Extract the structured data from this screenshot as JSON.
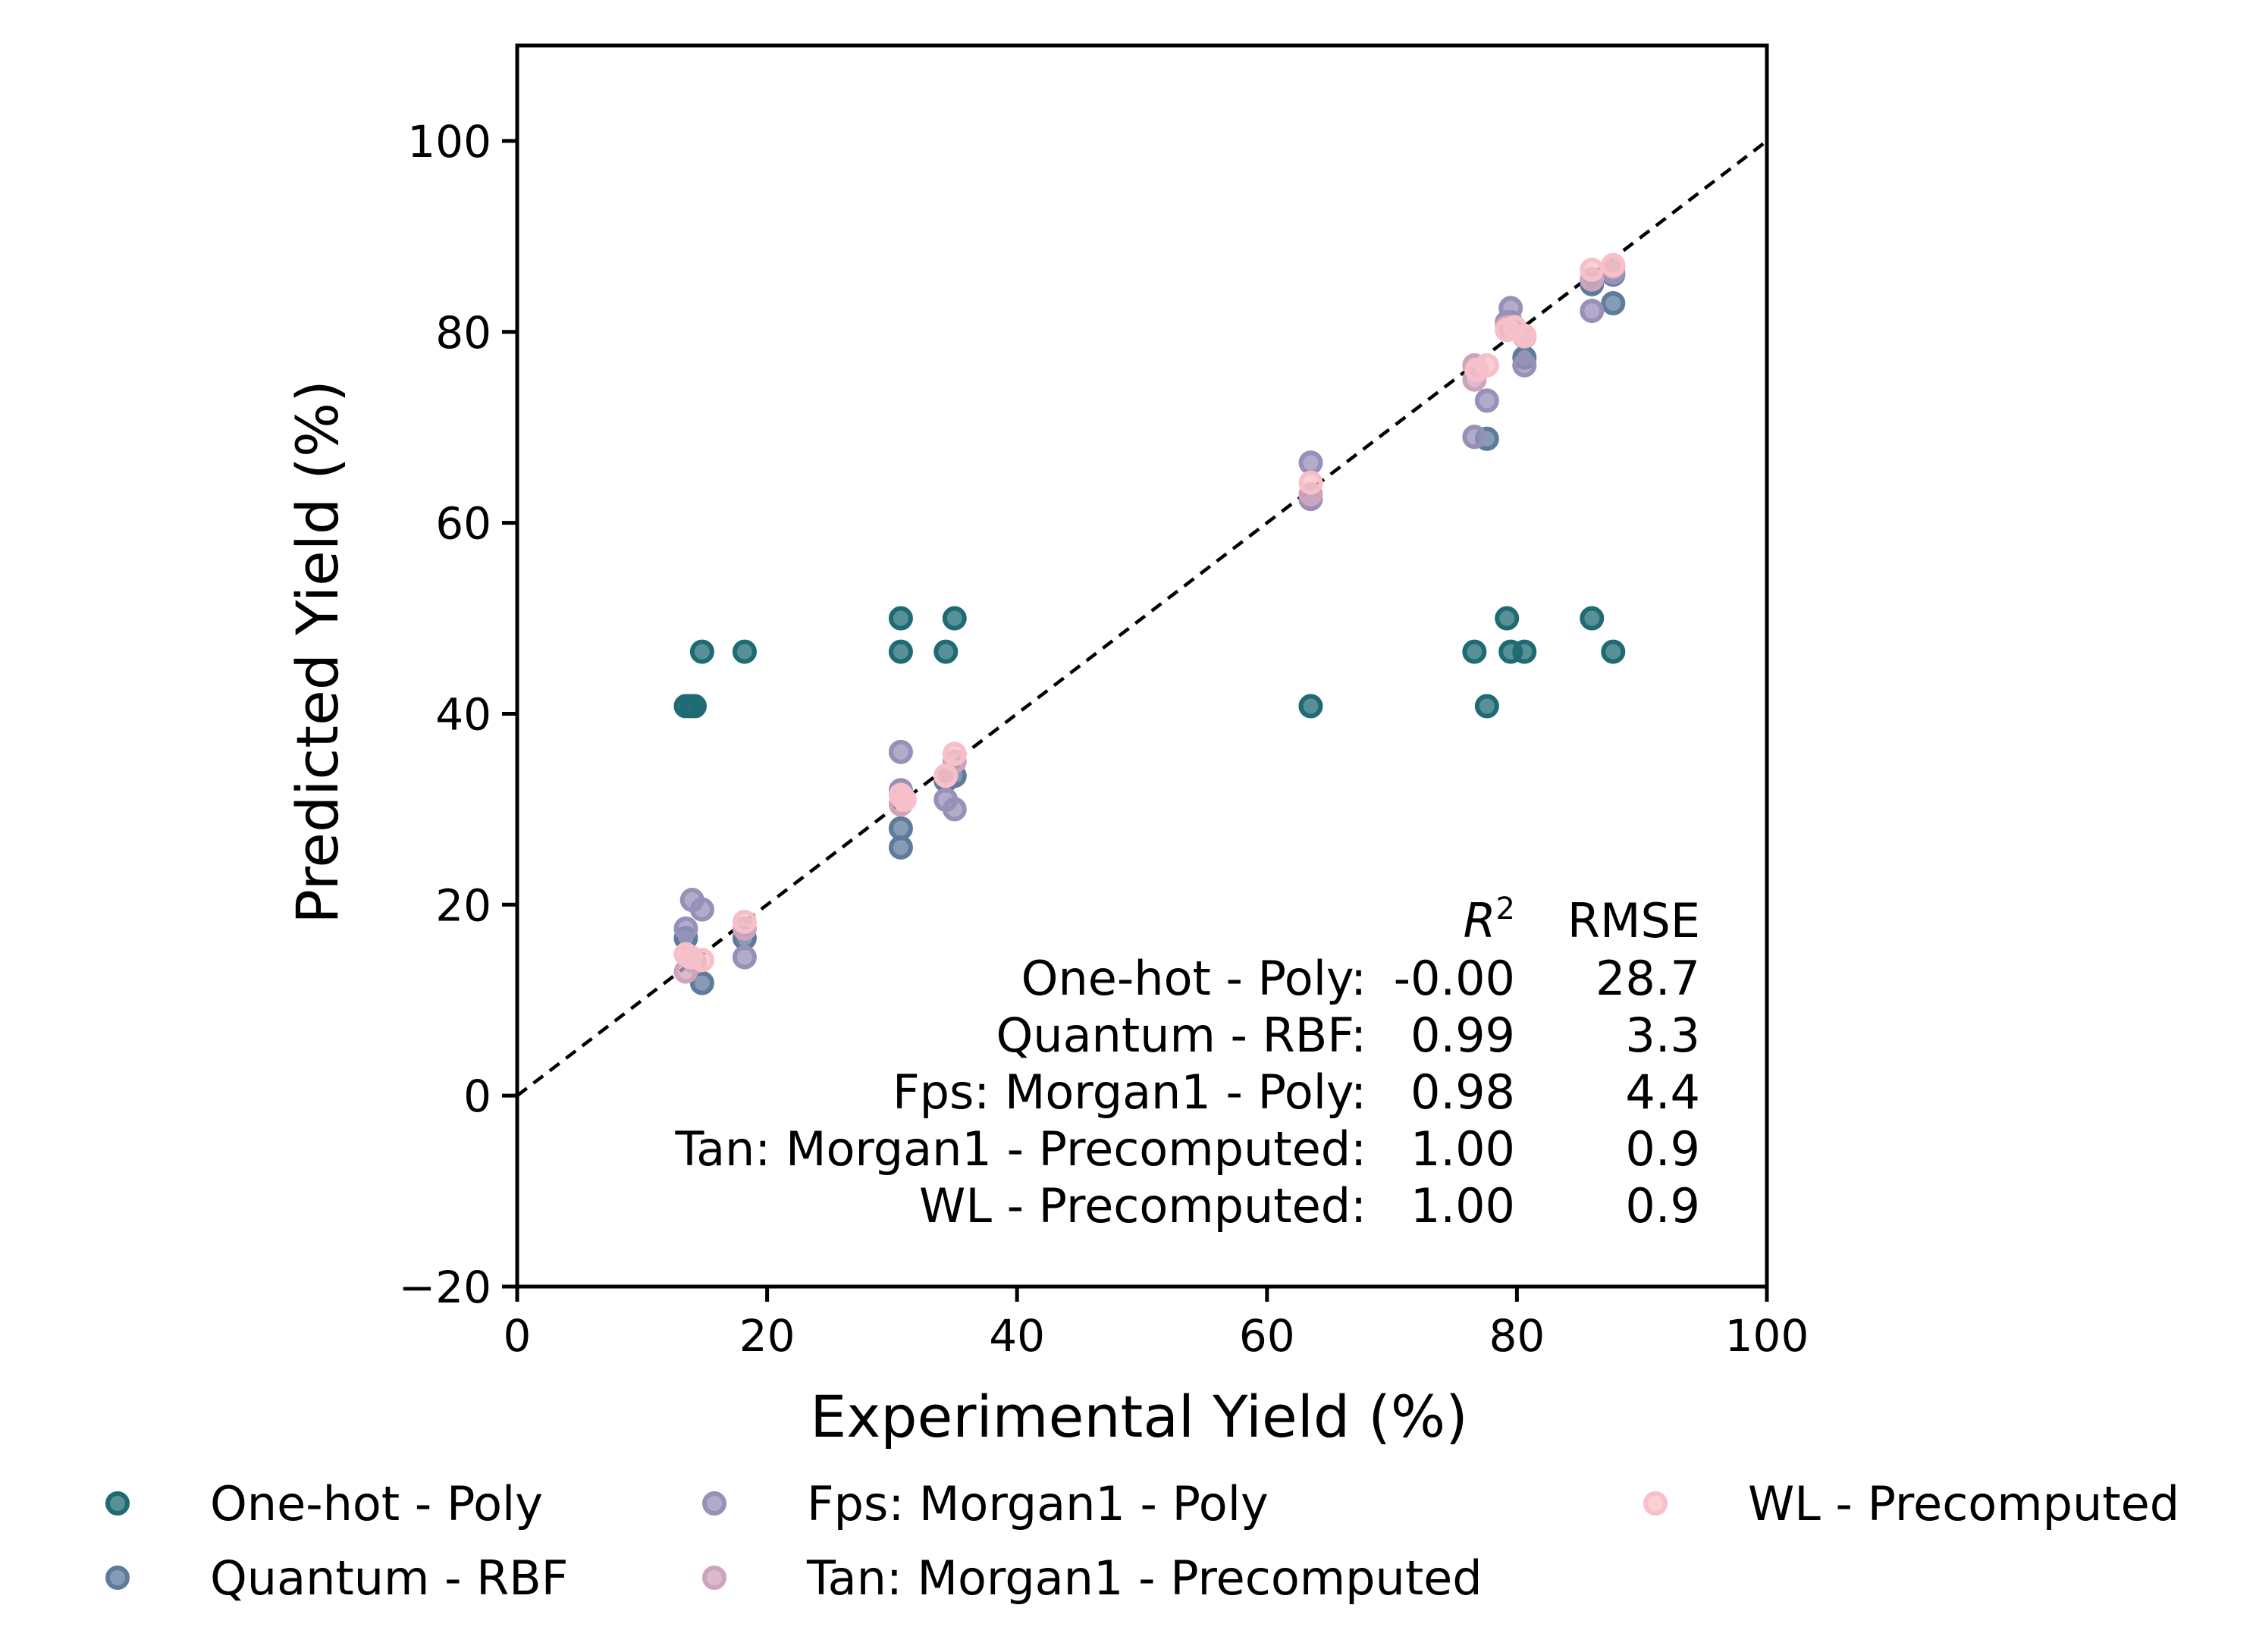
{
  "chart_data": {
    "type": "scatter",
    "title": "",
    "xlabel": "Experimental Yield (%)",
    "ylabel": "Predicted Yield (%)",
    "xlim": [
      0,
      100
    ],
    "ylim": [
      -20,
      110
    ],
    "x_ticks": [
      0,
      20,
      40,
      60,
      80,
      100
    ],
    "y_ticks": [
      -20,
      0,
      20,
      40,
      60,
      80,
      100
    ],
    "x_tick_labels": [
      "0",
      "20",
      "40",
      "60",
      "80",
      "100"
    ],
    "y_tick_labels": [
      "−20",
      "0",
      "20",
      "40",
      "60",
      "80",
      "100"
    ],
    "diagonal": {
      "from": [
        0,
        0
      ],
      "to": [
        100,
        100
      ],
      "style": "dashed"
    },
    "series": [
      {
        "name": "One-hot - Poly",
        "color": "#1f6b73",
        "points": [
          [
            13.5,
            40.8
          ],
          [
            13.9,
            40.8
          ],
          [
            14.2,
            40.8
          ],
          [
            14.8,
            46.5
          ],
          [
            18.2,
            46.5
          ],
          [
            30.7,
            50
          ],
          [
            30.7,
            46.5
          ],
          [
            34.3,
            46.5
          ],
          [
            35,
            50
          ],
          [
            63.5,
            40.8
          ],
          [
            76.6,
            46.5
          ],
          [
            77.6,
            40.8
          ],
          [
            79.2,
            50
          ],
          [
            79.5,
            46.5
          ],
          [
            80.6,
            46.5
          ],
          [
            86,
            50
          ],
          [
            87.7,
            46.5
          ]
        ]
      },
      {
        "name": "Quantum - RBF",
        "color": "#5e7b9c",
        "points": [
          [
            13.5,
            16.5
          ],
          [
            14.8,
            11.8
          ],
          [
            18.2,
            16.5
          ],
          [
            30.7,
            28
          ],
          [
            30.7,
            26
          ],
          [
            34.3,
            33
          ],
          [
            35,
            33.5
          ],
          [
            79.5,
            81
          ],
          [
            80.6,
            77.3
          ],
          [
            77.6,
            68.8
          ],
          [
            86,
            85
          ],
          [
            87.7,
            83
          ],
          [
            87.7,
            86
          ]
        ]
      },
      {
        "name": "Fps: Morgan1 - Poly",
        "color": "#9890b8",
        "points": [
          [
            13.5,
            17.5
          ],
          [
            14.0,
            20.5
          ],
          [
            14.8,
            19.5
          ],
          [
            18.2,
            14.5
          ],
          [
            30.7,
            36
          ],
          [
            30.7,
            32
          ],
          [
            34.3,
            31
          ],
          [
            35,
            30
          ],
          [
            63.5,
            66.3
          ],
          [
            63.5,
            62.5
          ],
          [
            76.6,
            69
          ],
          [
            77.6,
            72.8
          ],
          [
            79.2,
            81
          ],
          [
            79.5,
            82.5
          ],
          [
            80.6,
            76.5
          ],
          [
            86,
            82.2
          ],
          [
            87.7,
            86.2
          ]
        ]
      },
      {
        "name": "Tan: Morgan1 - Precomputed",
        "color": "#cda4bc",
        "points": [
          [
            13.5,
            13
          ],
          [
            14.2,
            14
          ],
          [
            18.2,
            17.5
          ],
          [
            30.7,
            30.5
          ],
          [
            34.3,
            33.5
          ],
          [
            35,
            35
          ],
          [
            63.5,
            63
          ],
          [
            76.6,
            76.5
          ],
          [
            76.6,
            75
          ],
          [
            79.2,
            80.5
          ],
          [
            80.6,
            79.5
          ],
          [
            86,
            85.5
          ],
          [
            87.7,
            86.8
          ]
        ]
      },
      {
        "name": "WL - Precomputed",
        "color": "#f7c0c8",
        "points": [
          [
            13.5,
            14.8
          ],
          [
            13.9,
            14.5
          ],
          [
            14.8,
            14.2
          ],
          [
            18.2,
            18.2
          ],
          [
            30.7,
            31.5
          ],
          [
            31,
            31
          ],
          [
            34.3,
            33.5
          ],
          [
            35,
            35.8
          ],
          [
            63.5,
            64.2
          ],
          [
            76.8,
            76
          ],
          [
            77.6,
            76.5
          ],
          [
            79.2,
            80.2
          ],
          [
            79.8,
            80.5
          ],
          [
            80.6,
            79.6
          ],
          [
            86,
            86.5
          ],
          [
            87.7,
            87
          ]
        ]
      }
    ],
    "stats_table": {
      "headers": [
        "R²",
        "RMSE"
      ],
      "rows": [
        {
          "model": "One-hot - Poly:",
          "r2": "-0.00",
          "rmse": "28.7"
        },
        {
          "model": "Quantum - RBF:",
          "r2": "0.99",
          "rmse": "3.3"
        },
        {
          "model": "Fps: Morgan1 - Poly:",
          "r2": "0.98",
          "rmse": "4.4"
        },
        {
          "model": "Tan: Morgan1 - Precomputed:",
          "r2": "1.00",
          "rmse": "0.9"
        },
        {
          "model": "WL - Precomputed:",
          "r2": "1.00",
          "rmse": "0.9"
        }
      ]
    },
    "legend": {
      "placement": "bottom",
      "entries": [
        "One-hot - Poly",
        "Quantum - RBF",
        "Fps: Morgan1 - Poly",
        "Tan: Morgan1 - Precomputed",
        "WL - Precomputed"
      ]
    }
  }
}
